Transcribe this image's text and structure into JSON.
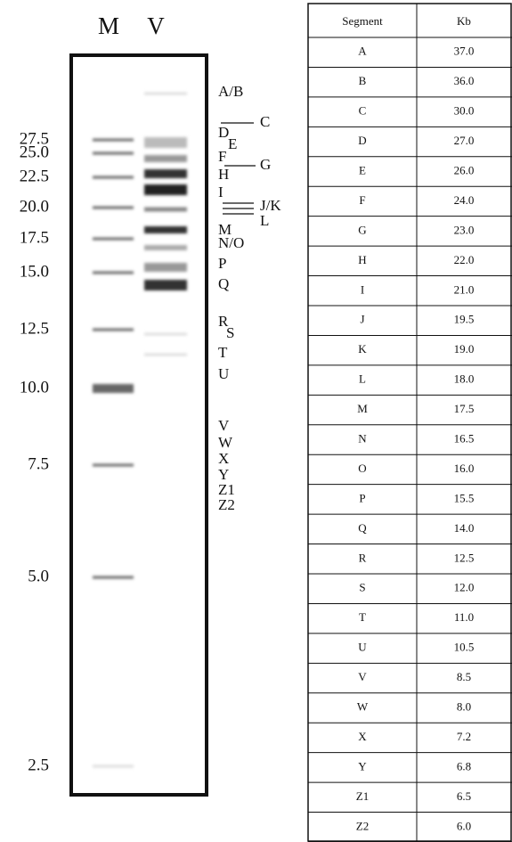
{
  "lanes": [
    "M",
    "V"
  ],
  "marker_sizes": [
    "27.5",
    "25.0",
    "22.5",
    "20.0",
    "17.5",
    "15.0",
    "12.5",
    "10.0",
    "7.5",
    "5.0",
    "2.5"
  ],
  "band_labels": [
    "A/B",
    "C",
    "D",
    "E",
    "F",
    "G",
    "H",
    "I",
    "J/K",
    "L",
    "M",
    "N/O",
    "P",
    "Q",
    "R",
    "S",
    "T",
    "U",
    "V",
    "W",
    "X",
    "Y",
    "Z1",
    "Z2"
  ],
  "table": {
    "header": [
      "Segment",
      "Kb"
    ],
    "rows": [
      [
        "A",
        "37.0"
      ],
      [
        "B",
        "36.0"
      ],
      [
        "C",
        "30.0"
      ],
      [
        "D",
        "27.0"
      ],
      [
        "E",
        "26.0"
      ],
      [
        "F",
        "24.0"
      ],
      [
        "G",
        "23.0"
      ],
      [
        "H",
        "22.0"
      ],
      [
        "I",
        "21.0"
      ],
      [
        "J",
        "19.5"
      ],
      [
        "K",
        "19.0"
      ],
      [
        "L",
        "18.0"
      ],
      [
        "M",
        "17.5"
      ],
      [
        "N",
        "16.5"
      ],
      [
        "O",
        "16.0"
      ],
      [
        "P",
        "15.5"
      ],
      [
        "Q",
        "14.0"
      ],
      [
        "R",
        "12.5"
      ],
      [
        "S",
        "12.0"
      ],
      [
        "T",
        "11.0"
      ],
      [
        "U",
        "10.5"
      ],
      [
        "V",
        "8.5"
      ],
      [
        "W",
        "8.0"
      ],
      [
        "X",
        "7.2"
      ],
      [
        "Y",
        "6.8"
      ],
      [
        "Z1",
        "6.5"
      ],
      [
        "Z2",
        "6.0"
      ]
    ]
  }
}
